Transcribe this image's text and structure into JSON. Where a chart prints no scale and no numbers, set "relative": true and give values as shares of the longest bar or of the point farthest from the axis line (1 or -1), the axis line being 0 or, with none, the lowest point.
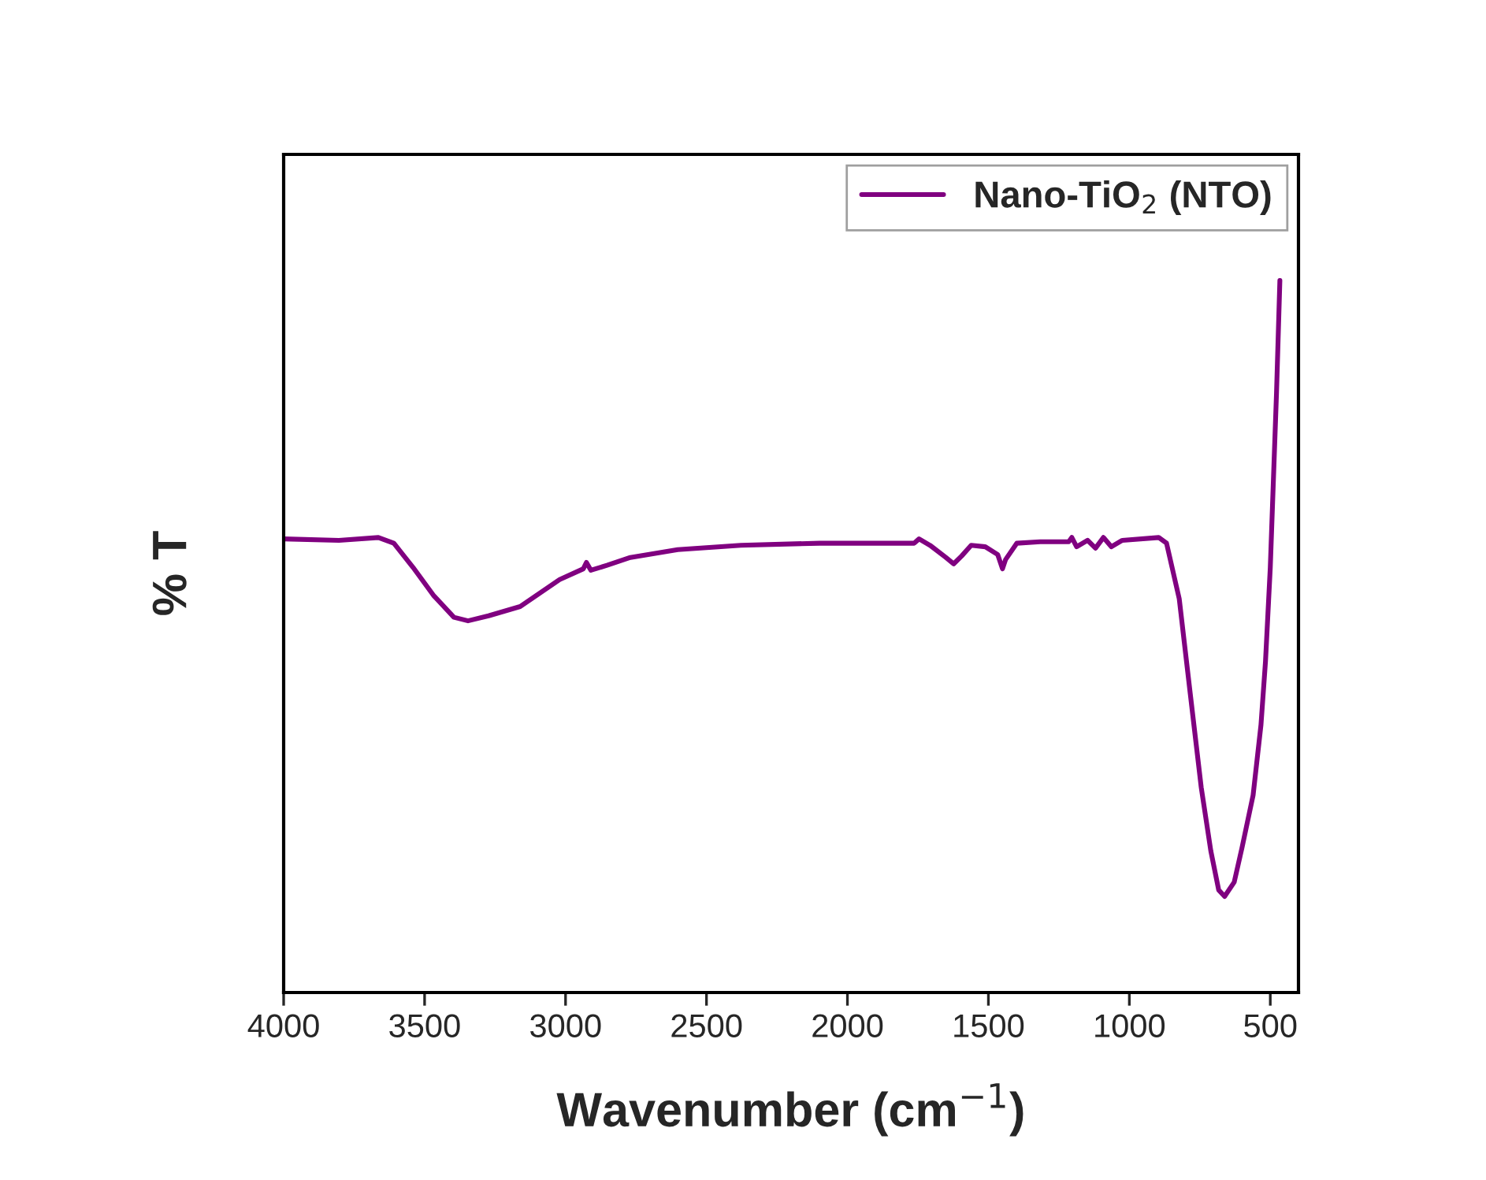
{
  "chart_data": {
    "type": "line",
    "relative": true,
    "xlabel": "Wavenumber (cm$^{−1}$)",
    "ylabel": "% T",
    "xlim": [
      4000,
      400
    ],
    "xticks": [
      4000,
      3500,
      3000,
      2500,
      2000,
      1500,
      1000,
      500
    ],
    "tick_labels": "x",
    "legend": "top right",
    "grid": false,
    "series": [
      {
        "name": "Nano-TiO$_{2}$ (NTO)",
        "color": "#800080",
        "x": [
          4000,
          3804,
          3664,
          3609,
          3541,
          3469,
          3396,
          3346,
          3273,
          3161,
          3021,
          2937,
          2926,
          2910,
          2853,
          2770,
          2602,
          2378,
          2099,
          1763,
          1746,
          1707,
          1651,
          1623,
          1595,
          1561,
          1511,
          1467,
          1450,
          1439,
          1399,
          1316,
          1215,
          1204,
          1187,
          1148,
          1120,
          1092,
          1064,
          1025,
          896,
          868,
          823,
          784,
          745,
          711,
          683,
          662,
          628,
          600,
          561,
          533,
          517,
          500,
          478,
          466
        ],
        "values": [
          0.637,
          0.635,
          0.639,
          0.631,
          0.597,
          0.558,
          0.527,
          0.522,
          0.529,
          0.542,
          0.58,
          0.595,
          0.604,
          0.593,
          0.6,
          0.611,
          0.622,
          0.628,
          0.631,
          0.631,
          0.637,
          0.628,
          0.611,
          0.602,
          0.613,
          0.628,
          0.626,
          0.615,
          0.595,
          0.608,
          0.631,
          0.633,
          0.633,
          0.639,
          0.626,
          0.635,
          0.624,
          0.639,
          0.626,
          0.635,
          0.639,
          0.631,
          0.553,
          0.42,
          0.288,
          0.199,
          0.144,
          0.135,
          0.155,
          0.204,
          0.277,
          0.376,
          0.465,
          0.597,
          0.841,
          1.0
        ]
      }
    ]
  }
}
